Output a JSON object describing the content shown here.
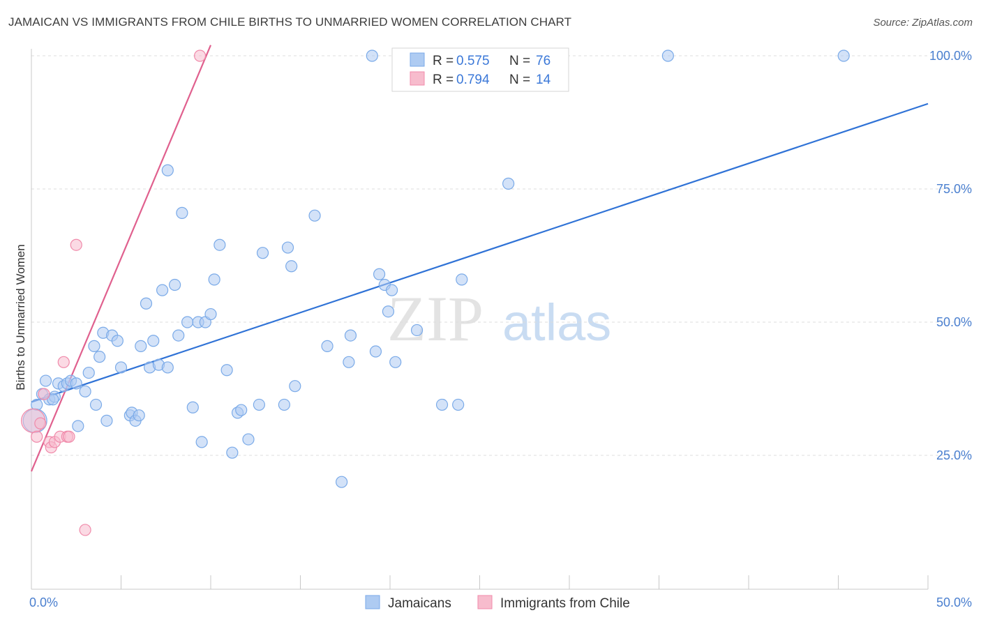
{
  "title": "JAMAICAN VS IMMIGRANTS FROM CHILE BIRTHS TO UNMARRIED WOMEN CORRELATION CHART",
  "source": "Source: ZipAtlas.com",
  "watermark": {
    "zip": "ZIP",
    "atlas": "atlas"
  },
  "chart_data": {
    "type": "scatter",
    "xlabel": "",
    "ylabel": "Births to Unmarried Women",
    "xlim": [
      0,
      50
    ],
    "ylim": [
      0,
      101
    ],
    "x_tick_labels": [
      {
        "value": 0,
        "label": "0.0%"
      },
      {
        "value": 50,
        "label": "50.0%"
      }
    ],
    "y_tick_labels": [
      {
        "value": 25,
        "label": "25.0%"
      },
      {
        "value": 50,
        "label": "50.0%"
      },
      {
        "value": 75,
        "label": "75.0%"
      },
      {
        "value": 100,
        "label": "100.0%"
      }
    ],
    "legend": {
      "placement": "top-center",
      "entries": [
        {
          "r_label": "R =",
          "r_value": "0.575",
          "n_label": "N =",
          "n_value": "76"
        },
        {
          "r_label": "R =",
          "r_value": "0.794",
          "n_label": "N =",
          "n_value": "14"
        }
      ]
    },
    "series": [
      {
        "name": "Jamaicans",
        "color": "#7aaae8",
        "fill": "#aecbf2",
        "line_color": "#2f72d6",
        "trend": {
          "x": [
            0,
            50
          ],
          "y": [
            35.0,
            91.0
          ]
        },
        "points": [
          [
            0.3,
            34.5
          ],
          [
            0.6,
            36.5
          ],
          [
            0.8,
            39.0
          ],
          [
            1.0,
            35.5
          ],
          [
            1.3,
            36.0
          ],
          [
            1.5,
            38.5
          ],
          [
            1.8,
            38.0
          ],
          [
            2.0,
            38.5
          ],
          [
            2.2,
            39.0
          ],
          [
            2.5,
            38.5
          ],
          [
            2.6,
            30.5
          ],
          [
            3.0,
            37.0
          ],
          [
            3.2,
            40.5
          ],
          [
            3.5,
            45.5
          ],
          [
            3.6,
            34.5
          ],
          [
            3.8,
            43.5
          ],
          [
            4.0,
            48.0
          ],
          [
            4.2,
            31.5
          ],
          [
            4.5,
            47.5
          ],
          [
            4.8,
            46.5
          ],
          [
            5.0,
            41.5
          ],
          [
            5.5,
            32.5
          ],
          [
            5.6,
            33.0
          ],
          [
            5.8,
            31.5
          ],
          [
            6.0,
            32.5
          ],
          [
            6.1,
            45.5
          ],
          [
            6.4,
            53.5
          ],
          [
            6.6,
            41.5
          ],
          [
            6.8,
            46.5
          ],
          [
            7.1,
            42.0
          ],
          [
            7.3,
            56.0
          ],
          [
            7.6,
            41.5
          ],
          [
            7.6,
            78.5
          ],
          [
            8.0,
            57.0
          ],
          [
            8.2,
            47.5
          ],
          [
            8.4,
            70.5
          ],
          [
            8.7,
            50.0
          ],
          [
            9.0,
            34.0
          ],
          [
            9.3,
            50.0
          ],
          [
            9.5,
            27.5
          ],
          [
            9.7,
            50.0
          ],
          [
            10.0,
            51.5
          ],
          [
            10.2,
            58.0
          ],
          [
            10.5,
            64.5
          ],
          [
            10.9,
            41.0
          ],
          [
            11.2,
            25.5
          ],
          [
            11.5,
            33.0
          ],
          [
            11.7,
            33.5
          ],
          [
            12.1,
            28.0
          ],
          [
            12.7,
            34.5
          ],
          [
            12.9,
            63.0
          ],
          [
            14.1,
            34.5
          ],
          [
            14.3,
            64.0
          ],
          [
            14.5,
            60.5
          ],
          [
            14.7,
            38.0
          ],
          [
            15.8,
            70.0
          ],
          [
            16.5,
            45.5
          ],
          [
            17.3,
            20.0
          ],
          [
            17.7,
            42.5
          ],
          [
            17.8,
            47.5
          ],
          [
            19.0,
            100.0
          ],
          [
            19.2,
            44.5
          ],
          [
            19.4,
            59.0
          ],
          [
            19.7,
            57.0
          ],
          [
            19.9,
            52.0
          ],
          [
            20.1,
            56.0
          ],
          [
            20.3,
            42.5
          ],
          [
            21.5,
            48.5
          ],
          [
            22.9,
            34.5
          ],
          [
            23.8,
            34.5
          ],
          [
            24.0,
            58.0
          ],
          [
            26.6,
            76.0
          ],
          [
            35.5,
            100.0
          ],
          [
            45.3,
            100.0
          ],
          [
            0.2,
            31.5
          ],
          [
            1.2,
            35.5
          ]
        ]
      },
      {
        "name": "Immigrants from Chile",
        "color": "#f08aaa",
        "fill": "#f7bccd",
        "line_color": "#e0608e",
        "trend": {
          "x": [
            0,
            10
          ],
          "y": [
            22.0,
            102.0
          ]
        },
        "points": [
          [
            0.1,
            31.5
          ],
          [
            0.3,
            28.5
          ],
          [
            0.5,
            31.0
          ],
          [
            0.7,
            36.5
          ],
          [
            1.0,
            27.5
          ],
          [
            1.1,
            26.5
          ],
          [
            1.3,
            27.5
          ],
          [
            1.6,
            28.5
          ],
          [
            1.8,
            42.5
          ],
          [
            2.0,
            28.5
          ],
          [
            2.1,
            28.5
          ],
          [
            2.5,
            64.5
          ],
          [
            3.0,
            11.0
          ],
          [
            9.4,
            100.0
          ]
        ]
      }
    ]
  }
}
